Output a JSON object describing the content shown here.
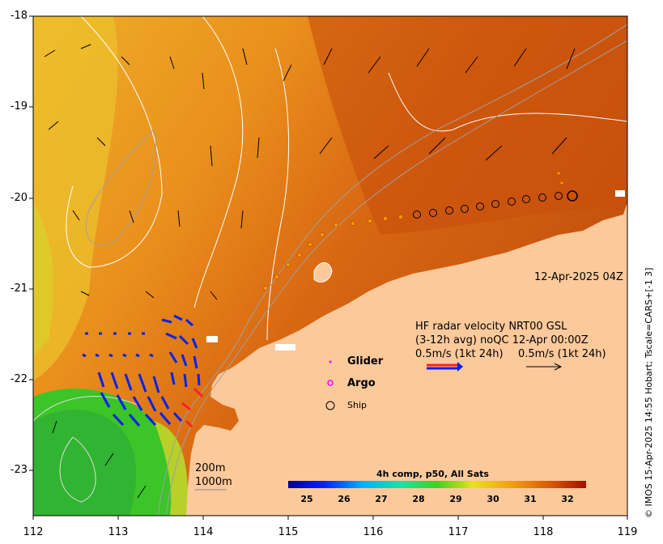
{
  "axes": {
    "y_ticks": [
      "-18",
      "-19",
      "-20",
      "-21",
      "-22",
      "-23"
    ],
    "x_ticks": [
      "112",
      "113",
      "114",
      "115",
      "116",
      "117",
      "118",
      "119"
    ]
  },
  "timestamp": "12-Apr-2025 04Z",
  "radar": {
    "line1": "HF radar velocity  NRT00 GSL",
    "line2": "(3-12h avg) noQC 12-Apr 00:00Z",
    "scale_left": "0.5m/s (1kt 24h)",
    "scale_right": "0.5m/s (1kt 24h)"
  },
  "legend": {
    "glider": "Glider",
    "argo": "Argo",
    "ship": "Ship"
  },
  "depth_labels": [
    "200m",
    "1000m"
  ],
  "colorbar": {
    "title": "4h comp, p50, All Sats",
    "ticks": [
      "25",
      "26",
      "27",
      "28",
      "29",
      "30",
      "31",
      "32"
    ]
  },
  "credit": "© IMOS 15-Apr-2025 14:55 Hobart; Tscale=CARS+[-1 3]",
  "colors": {
    "land": "#fcc99b",
    "glider": "#ff00ff",
    "argo": "#ff00ff"
  }
}
